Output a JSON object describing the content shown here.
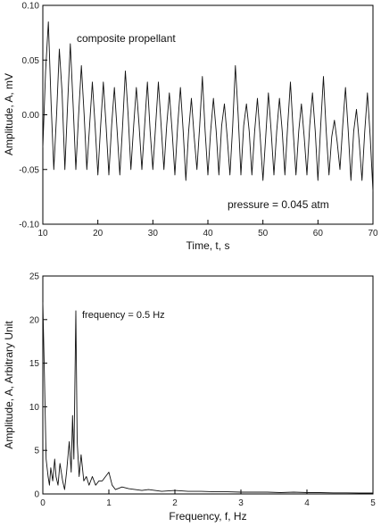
{
  "chart_data": [
    {
      "type": "line",
      "xlabel": "Time, t, s",
      "ylabel": "Amplitude, A, mV",
      "xlim": [
        10,
        70
      ],
      "ylim": [
        -0.1,
        0.1
      ],
      "xticks": [
        "10",
        "20",
        "30",
        "40",
        "50",
        "60",
        "70"
      ],
      "yticks": [
        "-0.10",
        "-0.05",
        "0.00",
        "0.05",
        "0.10"
      ],
      "annotations": [
        "composite propellant",
        "pressure = 0.045 atm"
      ],
      "grid": false,
      "series": [
        {
          "x": [
            10.0,
            10.5,
            11.0,
            11.5,
            12.0,
            12.5,
            13.0,
            13.5,
            14.0,
            14.5,
            15.0,
            15.5,
            16.0,
            16.5,
            17.0,
            17.5,
            18.0,
            18.5,
            19.0,
            19.5,
            20.0,
            20.5,
            21.0,
            21.5,
            22.0,
            22.5,
            23.0,
            23.5,
            24.0,
            24.5,
            25.0,
            25.5,
            26.0,
            26.5,
            27.0,
            27.5,
            28.0,
            28.5,
            29.0,
            29.5,
            30.0,
            30.5,
            31.0,
            31.5,
            32.0,
            32.5,
            33.0,
            33.5,
            34.0,
            34.5,
            35.0,
            35.5,
            36.0,
            36.5,
            37.0,
            37.5,
            38.0,
            38.5,
            39.0,
            39.5,
            40.0,
            40.5,
            41.0,
            41.5,
            42.0,
            42.5,
            43.0,
            43.5,
            44.0,
            44.5,
            45.0,
            45.5,
            46.0,
            46.5,
            47.0,
            47.5,
            48.0,
            48.5,
            49.0,
            49.5,
            50.0,
            50.5,
            51.0,
            51.5,
            52.0,
            52.5,
            53.0,
            53.5,
            54.0,
            54.5,
            55.0,
            55.5,
            56.0,
            56.5,
            57.0,
            57.5,
            58.0,
            58.5,
            59.0,
            59.5,
            60.0,
            60.5,
            61.0,
            61.5,
            62.0,
            62.5,
            63.0,
            63.5,
            64.0,
            64.5,
            65.0,
            65.5,
            66.0,
            66.5,
            67.0,
            67.5,
            68.0,
            68.5,
            69.0,
            69.5,
            70.0
          ],
          "y": [
            -0.03,
            0.04,
            0.085,
            0.01,
            -0.05,
            0.0,
            0.06,
            0.02,
            -0.05,
            0.01,
            0.065,
            0.01,
            -0.05,
            0.0,
            0.045,
            0.0,
            -0.05,
            -0.01,
            0.03,
            -0.01,
            -0.055,
            -0.01,
            0.03,
            -0.01,
            -0.055,
            -0.01,
            0.025,
            -0.015,
            -0.055,
            -0.01,
            0.04,
            0.0,
            -0.05,
            -0.01,
            0.025,
            -0.01,
            -0.05,
            -0.01,
            0.03,
            -0.015,
            -0.05,
            -0.01,
            0.03,
            -0.01,
            -0.05,
            -0.01,
            0.02,
            -0.015,
            -0.055,
            -0.01,
            0.025,
            -0.015,
            -0.06,
            -0.015,
            0.015,
            -0.02,
            -0.05,
            -0.01,
            0.035,
            -0.015,
            -0.055,
            -0.015,
            0.015,
            -0.015,
            -0.055,
            -0.01,
            0.01,
            -0.02,
            -0.055,
            -0.01,
            0.045,
            0.0,
            -0.055,
            -0.01,
            0.01,
            -0.015,
            -0.055,
            -0.015,
            0.015,
            -0.02,
            -0.06,
            -0.02,
            0.02,
            -0.015,
            -0.055,
            -0.015,
            0.015,
            -0.015,
            -0.055,
            -0.01,
            0.03,
            -0.015,
            -0.055,
            -0.015,
            0.01,
            -0.02,
            -0.055,
            -0.01,
            0.02,
            -0.015,
            -0.06,
            -0.01,
            0.035,
            -0.015,
            -0.055,
            -0.02,
            -0.005,
            -0.025,
            -0.05,
            -0.01,
            0.025,
            -0.015,
            -0.06,
            -0.015,
            0.005,
            -0.025,
            -0.06,
            -0.015,
            0.02,
            -0.02,
            -0.07
          ]
        }
      ]
    },
    {
      "type": "line",
      "xlabel": "Frequency, f, Hz",
      "ylabel": "Amplitude, A, Arbitrary Unit",
      "xlim": [
        0,
        5
      ],
      "ylim": [
        0,
        25
      ],
      "xticks": [
        "0",
        "1",
        "2",
        "3",
        "4",
        "5"
      ],
      "yticks": [
        "0",
        "5",
        "10",
        "15",
        "20",
        "25"
      ],
      "annotations": [
        "frequency = 0.5 Hz"
      ],
      "grid": false,
      "series": [
        {
          "x": [
            0.0,
            0.02,
            0.05,
            0.08,
            0.1,
            0.12,
            0.15,
            0.18,
            0.2,
            0.23,
            0.26,
            0.3,
            0.33,
            0.36,
            0.4,
            0.43,
            0.45,
            0.47,
            0.5,
            0.52,
            0.55,
            0.58,
            0.62,
            0.66,
            0.7,
            0.75,
            0.8,
            0.85,
            0.9,
            0.95,
            1.0,
            1.05,
            1.1,
            1.2,
            1.3,
            1.4,
            1.5,
            1.6,
            1.7,
            1.8,
            1.9,
            2.0,
            2.2,
            2.4,
            2.6,
            2.8,
            3.0,
            3.2,
            3.4,
            3.6,
            3.8,
            4.0,
            4.2,
            4.4,
            4.6,
            4.8,
            5.0
          ],
          "y": [
            22.0,
            15.0,
            4.0,
            2.0,
            1.0,
            3.0,
            1.5,
            4.0,
            2.0,
            1.0,
            3.5,
            1.5,
            0.5,
            2.5,
            6.0,
            2.5,
            9.0,
            4.0,
            21.0,
            6.0,
            2.0,
            4.5,
            1.5,
            2.0,
            1.0,
            2.0,
            1.0,
            1.5,
            1.5,
            2.0,
            2.5,
            1.0,
            0.5,
            0.8,
            0.6,
            0.5,
            0.4,
            0.5,
            0.4,
            0.3,
            0.35,
            0.4,
            0.3,
            0.3,
            0.25,
            0.25,
            0.2,
            0.2,
            0.2,
            0.15,
            0.2,
            0.15,
            0.15,
            0.12,
            0.12,
            0.1,
            0.1
          ]
        }
      ]
    }
  ]
}
